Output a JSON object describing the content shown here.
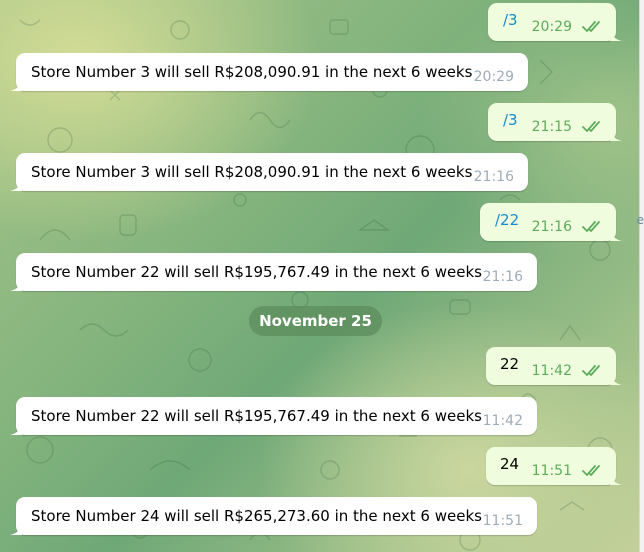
{
  "chat": {
    "date_separator": "November 25",
    "messages": [
      {
        "type": "out",
        "text": "/3",
        "time": "20:29"
      },
      {
        "type": "in",
        "text": "Store Number 3 will sell R$208,090.91 in the next 6 weeks",
        "time": "20:29"
      },
      {
        "type": "out",
        "text": "/3",
        "time": "21:15"
      },
      {
        "type": "in",
        "text": "Store Number 3 will sell R$208,090.91 in the next 6 weeks",
        "time": "21:16"
      },
      {
        "type": "out",
        "text": "/22",
        "time": "21:16"
      },
      {
        "type": "in",
        "text": "Store Number 22 will sell R$195,767.49 in the next 6 weeks",
        "time": "21:16"
      },
      {
        "type": "out",
        "text": "22",
        "time": "11:42"
      },
      {
        "type": "in",
        "text": "Store Number 22 will sell R$195,767.49 in the next 6 weeks",
        "time": "11:42"
      },
      {
        "type": "out",
        "text": "24",
        "time": "11:51"
      },
      {
        "type": "in",
        "text": "Store Number 24 will sell R$265,273.60 in the next 6 weeks",
        "time": "11:51"
      }
    ],
    "edge_char": "e"
  },
  "colors": {
    "incoming_bubble": "#ffffff",
    "outgoing_bubble": "#effdde",
    "command_link": "#168acd",
    "read_ticks": "#5eac5b"
  },
  "icons": {
    "read_receipt": "double-check-icon"
  }
}
